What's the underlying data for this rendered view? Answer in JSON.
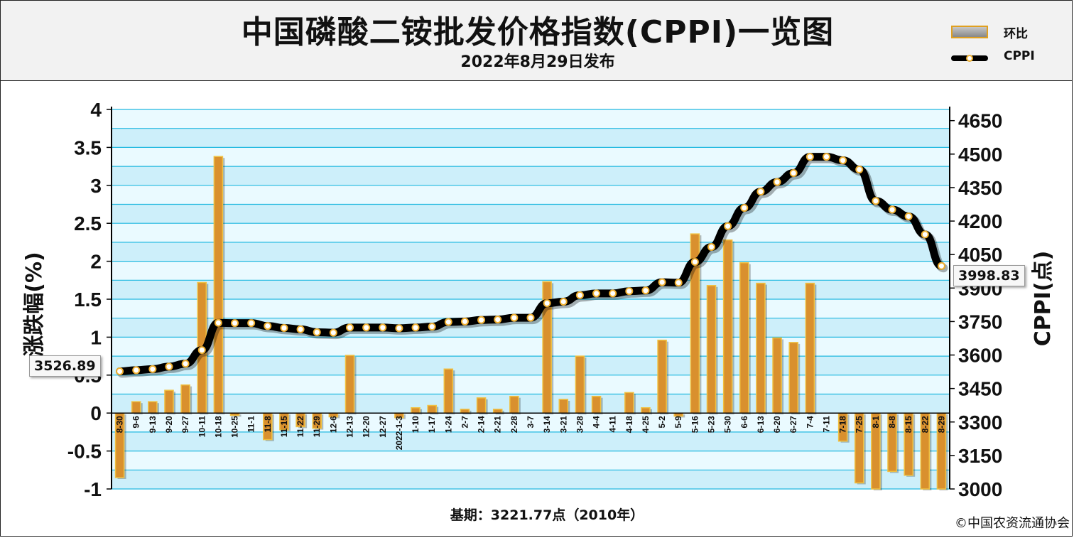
{
  "header": {
    "title": "中国磷酸二铵批发价格指数(CPPI)一览图",
    "subtitle": "2022年8月29日发布"
  },
  "legend": {
    "items": [
      {
        "label": "环比",
        "type": "bar"
      },
      {
        "label": "CPPI",
        "type": "line"
      }
    ]
  },
  "footer": {
    "base_note": "基期：3221.77点（2010年）",
    "copyright": "©中国农资流通协会"
  },
  "callouts": {
    "start_value": "3526.89",
    "end_value": "3998.83"
  },
  "colors": {
    "bar_fill": "#d9902e",
    "bar_border": "#f0c040",
    "line": "#000000",
    "marker": "#f0b030",
    "plot_bg": "#cdeffa",
    "grid": "#20b8e0"
  },
  "chart_data": {
    "type": "bar+line",
    "title": "中国磷酸二铵批发价格指数(CPPI)一览图",
    "subtitle": "2022年8月29日发布",
    "ylabel_left": "涨跌幅(%)",
    "ylabel_right": "CPPI(点)",
    "ylim_left": [
      -1,
      4
    ],
    "yticks_left": [
      "4",
      "3.5",
      "3",
      "2.5",
      "2",
      "1.5",
      "1",
      "0.5",
      "0",
      "-0.5",
      "-1"
    ],
    "ylim_right": [
      3000,
      4700
    ],
    "yticks_right": [
      "4650",
      "4500",
      "4350",
      "4200",
      "4050",
      "3900",
      "3750",
      "3600",
      "3450",
      "3300",
      "3150",
      "3000"
    ],
    "categories": [
      "8-30",
      "9-6",
      "9-13",
      "9-20",
      "9-27",
      "10-11",
      "10-18",
      "10-25",
      "11-1",
      "11-8",
      "11-15",
      "11-22",
      "11-29",
      "12-6",
      "12-13",
      "12-20",
      "12-27",
      "2022-1-3",
      "1-10",
      "1-17",
      "1-24",
      "2-7",
      "2-14",
      "2-21",
      "2-28",
      "3-7",
      "3-14",
      "3-21",
      "3-28",
      "4-4",
      "4-11",
      "4-18",
      "4-25",
      "5-2",
      "5-9",
      "5-16",
      "5-23",
      "5-30",
      "6-6",
      "6-13",
      "6-20",
      "6-27",
      "7-4",
      "7-11",
      "7-18",
      "7-25",
      "8-1",
      "8-8",
      "8-15",
      "8-22",
      "8-29"
    ],
    "series": [
      {
        "name": "环比",
        "type": "bar",
        "values": [
          -0.85,
          0.15,
          0.15,
          0.3,
          0.37,
          1.72,
          3.38,
          -0.03,
          0.0,
          -0.35,
          -0.22,
          -0.18,
          -0.2,
          -0.05,
          0.76,
          0.0,
          0.0,
          -0.06,
          0.07,
          0.1,
          0.58,
          0.05,
          0.2,
          0.05,
          0.22,
          0.0,
          1.73,
          0.18,
          0.75,
          0.22,
          0.0,
          0.27,
          0.07,
          0.96,
          -0.04,
          2.36,
          1.68,
          2.28,
          1.98,
          1.71,
          0.99,
          0.93,
          1.71,
          0.0,
          -0.37,
          -0.92,
          -1.0,
          -0.77,
          -0.82,
          -1.0,
          -1.0
        ]
      },
      {
        "name": "CPPI",
        "type": "line",
        "values": [
          3526.89,
          3532,
          3537,
          3548,
          3561,
          3622,
          3744,
          3743,
          3743,
          3730,
          3721,
          3715,
          3702,
          3700,
          3723,
          3723,
          3723,
          3720,
          3723,
          3727,
          3748,
          3750,
          3757,
          3759,
          3767,
          3767,
          3832,
          3839,
          3868,
          3876,
          3876,
          3886,
          3889,
          3926,
          3924,
          4017,
          4084,
          4177,
          4259,
          4332,
          4375,
          4415,
          4488,
          4488,
          4472,
          4431,
          4290,
          4251,
          4221,
          4140,
          3998.83
        ]
      }
    ],
    "grid": true,
    "legend_position": "top-right"
  }
}
